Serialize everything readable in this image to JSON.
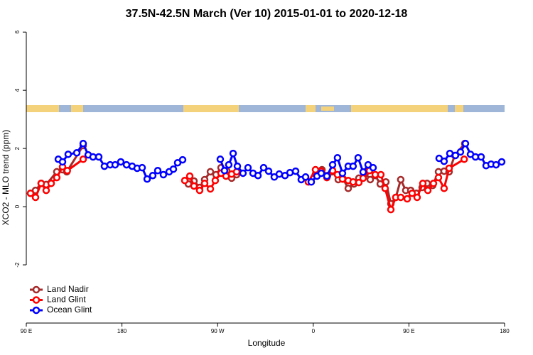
{
  "chart_data": {
    "type": "line",
    "title": "37.5N-42.5N March (Ver 10)   2015-01-01 to 2020-12-18",
    "x_label": "Longitude",
    "y_label": "XCO2 - MLO trend (ppm)",
    "xlim": [
      90,
      540
    ],
    "ylim": [
      -4,
      6.2
    ],
    "xticks": [
      {
        "value": 90,
        "label": "90 E"
      },
      180,
      {
        "value": 270,
        "label": "90 W"
      },
      {
        "value": 360,
        "label": "0"
      },
      {
        "value": 450,
        "label": "90 E"
      },
      {
        "value": 540,
        "label": "180"
      }
    ],
    "yticks": [
      -2,
      0,
      2,
      4,
      6
    ],
    "legend": "bottom-left",
    "series": [
      {
        "name": "Land Nadir",
        "color": "#a52a2a",
        "x": [
          94.0,
          98.7,
          104.0,
          108.7,
          118.7,
          124.1,
          128.1,
          143.5,
          null,
          242.5,
          247.8,
          253.1,
          257.8,
          263.2,
          268.5,
          273.2,
          278.5,
          283.2,
          287.9,
          null,
          362.1,
          368.2,
          373.5,
          378.2,
          383.5,
          388.2,
          392.9,
          398.2,
          402.9,
          408.9,
          413.6,
          418.3,
          423.0,
          428.3,
          433.0,
          437.7,
          442.3,
          447.0,
          451.7,
          457.0,
          462.4,
          467.1,
          472.4,
          477.8,
          483.1,
          487.8,
          493.1,
          502.5
        ],
        "values": [
          0.46,
          0.56,
          0.8,
          0.76,
          1.2,
          1.27,
          1.2,
          2.1,
          null,
          0.78,
          0.88,
          0.66,
          0.93,
          1.2,
          1.1,
          1.34,
          1.24,
          0.98,
          1.1,
          null,
          1.12,
          1.27,
          1.07,
          1.2,
          0.93,
          0.95,
          0.63,
          0.78,
          0.98,
          1.15,
          0.93,
          1.07,
          0.78,
          0.85,
          0.1,
          0.32,
          0.93,
          0.56,
          0.56,
          0.46,
          0.66,
          0.8,
          0.73,
          1.2,
          1.22,
          1.2,
          1.76,
          2.17
        ]
      },
      {
        "name": "Land Glint",
        "color": "#ff0000",
        "x": [
          94.0,
          98.7,
          104.0,
          108.7,
          113.4,
          118.7,
          124.1,
          128.6,
          143.5,
          null,
          239.1,
          243.8,
          247.8,
          253.1,
          257.8,
          263.2,
          267.8,
          273.2,
          277.9,
          283.2,
          287.9,
          null,
          355.4,
          362.1,
          367.5,
          372.8,
          378.2,
          382.8,
          387.5,
          392.9,
          397.5,
          402.9,
          406.9,
          412.9,
          418.3,
          423.6,
          427.6,
          433.0,
          437.7,
          442.3,
          448.4,
          453.0,
          457.7,
          463.1,
          467.8,
          473.1,
          477.8,
          483.1,
          487.8,
          502.0
        ],
        "values": [
          0.46,
          0.32,
          0.8,
          0.56,
          0.8,
          1.0,
          1.37,
          1.24,
          1.63,
          null,
          0.9,
          1.05,
          0.71,
          0.56,
          0.8,
          0.61,
          0.9,
          1.15,
          1.05,
          1.12,
          1.2,
          null,
          0.85,
          1.27,
          1.22,
          1.0,
          1.24,
          1.1,
          0.95,
          0.9,
          0.85,
          0.83,
          0.98,
          1.24,
          1.1,
          1.1,
          0.63,
          -0.1,
          0.32,
          0.32,
          0.27,
          0.46,
          0.32,
          0.8,
          0.56,
          0.8,
          1.0,
          0.63,
          1.32,
          1.63
        ]
      },
      {
        "name": "Ocean Glint",
        "color": "#0000ff",
        "x": [
          120.1,
          124.1,
          129.4,
          137.5,
          143.5,
          148.2,
          152.8,
          158.2,
          163.5,
          168.9,
          173.6,
          178.9,
          184.3,
          189.6,
          194.3,
          199.0,
          203.7,
          209.0,
          213.7,
          219.0,
          224.4,
          228.4,
          232.4,
          237.1,
          null,
          272.5,
          276.5,
          280.5,
          284.6,
          288.6,
          293.9,
          298.6,
          303.3,
          308.0,
          313.3,
          318.0,
          323.3,
          328.0,
          333.4,
          338.1,
          343.4,
          348.7,
          352.8,
          358.1,
          363.5,
          367.5,
          372.8,
          378.2,
          382.8,
          387.5,
          392.9,
          397.5,
          402.2,
          406.9,
          411.6,
          416.3,
          null,
          478.4,
          483.1,
          488.5,
          493.8,
          498.5,
          503.2,
          507.9,
          512.6,
          517.9,
          522.6,
          527.3,
          532.0,
          537.3
        ],
        "values": [
          1.63,
          1.54,
          1.8,
          1.85,
          2.17,
          1.78,
          1.71,
          1.71,
          1.39,
          1.44,
          1.44,
          1.54,
          1.44,
          1.39,
          1.32,
          1.34,
          0.95,
          1.07,
          1.24,
          1.1,
          1.2,
          1.29,
          1.51,
          1.61,
          null,
          1.63,
          1.24,
          1.44,
          1.83,
          1.39,
          1.15,
          1.34,
          1.15,
          1.07,
          1.34,
          1.22,
          1.02,
          1.12,
          1.07,
          1.17,
          1.22,
          0.93,
          1.02,
          0.85,
          1.05,
          1.15,
          1.05,
          1.44,
          1.68,
          1.15,
          1.39,
          1.39,
          1.68,
          1.19,
          1.44,
          1.34,
          null,
          1.66,
          1.56,
          1.83,
          1.76,
          1.88,
          2.17,
          1.8,
          1.71,
          1.71,
          1.41,
          1.46,
          1.44,
          1.54
        ]
      }
    ]
  }
}
